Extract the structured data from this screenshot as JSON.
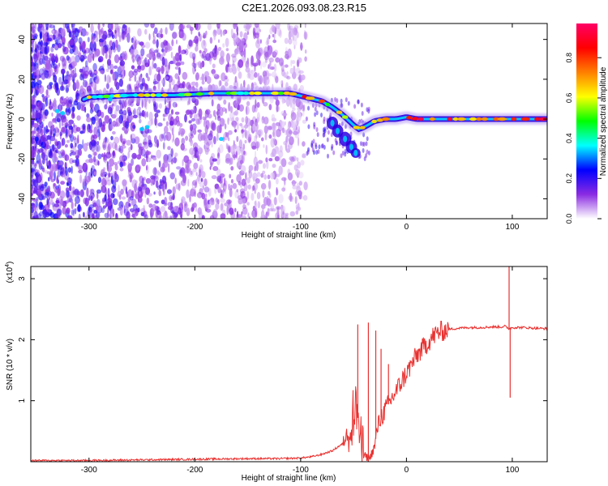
{
  "title": "C2E1.2026.093.08.23.R15",
  "chart_data": [
    {
      "type": "heatmap",
      "title": "C2E1.2026.093.08.23.R15",
      "xlabel": "Height of straight line (km)",
      "ylabel": "Frequency (Hz)",
      "xlim": [
        -355,
        133
      ],
      "ylim": [
        -50,
        48
      ],
      "xticks": [
        -300,
        -200,
        -100,
        0,
        100
      ],
      "yticks": [
        -40,
        -20,
        0,
        20,
        40
      ],
      "ridge_x": [
        -330,
        -300,
        -260,
        -220,
        -180,
        -140,
        -110,
        -95,
        -80,
        -70,
        -60,
        -50,
        -45,
        -40,
        -30,
        -20,
        -10,
        0,
        10,
        30,
        60,
        90,
        110,
        133
      ],
      "ridge_y": [
        4,
        11,
        12,
        12,
        13,
        13,
        13,
        11,
        9,
        6,
        2,
        -3,
        -5,
        -4,
        -1,
        0,
        0,
        1,
        0,
        0,
        0,
        0,
        0,
        0
      ],
      "colorbar": {
        "label": "Normalized spectral amplitude",
        "ticks": [
          "0.0",
          "0.2",
          "0.4",
          "0.6",
          "0.8"
        ],
        "range": [
          0,
          0.97
        ],
        "colors": [
          "#ffffff",
          "#8a2be2",
          "#0000ff",
          "#00ffff",
          "#00ff00",
          "#ffff00",
          "#ff7f00",
          "#ff0000",
          "#ff0066"
        ]
      }
    },
    {
      "type": "line",
      "xlabel": "Height of straight line (km)",
      "ylabel": "SNR (10 * v/v)",
      "multiplier_label": "(x10",
      "multiplier_exp": "4",
      "xlim": [
        -355,
        133
      ],
      "ylim": [
        0,
        3.2
      ],
      "xticks": [
        -300,
        -200,
        -100,
        0,
        100
      ],
      "yticks": [
        1,
        2,
        3
      ],
      "series_color": "#e8312f",
      "x": [
        -355,
        -300,
        -250,
        -200,
        -150,
        -120,
        -100,
        -90,
        -80,
        -70,
        -60,
        -55,
        -50,
        -47,
        -45,
        -43,
        -40,
        -35,
        -30,
        -28,
        -25,
        -20,
        -15,
        -10,
        -5,
        0,
        5,
        10,
        15,
        20,
        25,
        30,
        40,
        50,
        60,
        70,
        80,
        90,
        93,
        95,
        97,
        100,
        110,
        120,
        133
      ],
      "y": [
        0.02,
        0.02,
        0.03,
        0.04,
        0.05,
        0.05,
        0.06,
        0.08,
        0.12,
        0.18,
        0.3,
        0.5,
        0.8,
        0.9,
        0.6,
        0.3,
        0.1,
        0.05,
        0.25,
        0.5,
        0.7,
        0.85,
        1.0,
        1.15,
        1.3,
        1.45,
        1.6,
        1.75,
        1.85,
        1.95,
        2.05,
        2.12,
        2.17,
        2.19,
        2.2,
        2.2,
        2.21,
        2.21,
        2.22,
        2.2,
        2.18,
        2.2,
        2.2,
        2.19,
        2.18
      ],
      "spikes": [
        {
          "x": -46,
          "y": 2.25
        },
        {
          "x": -36,
          "y": 2.28
        },
        {
          "x": -29,
          "y": 2.15
        },
        {
          "x": -24,
          "y": 1.85
        },
        {
          "x": -17,
          "y": 1.6
        },
        {
          "x": 97,
          "y": 3.2
        },
        {
          "x": 98,
          "y": 1.05
        }
      ]
    }
  ]
}
